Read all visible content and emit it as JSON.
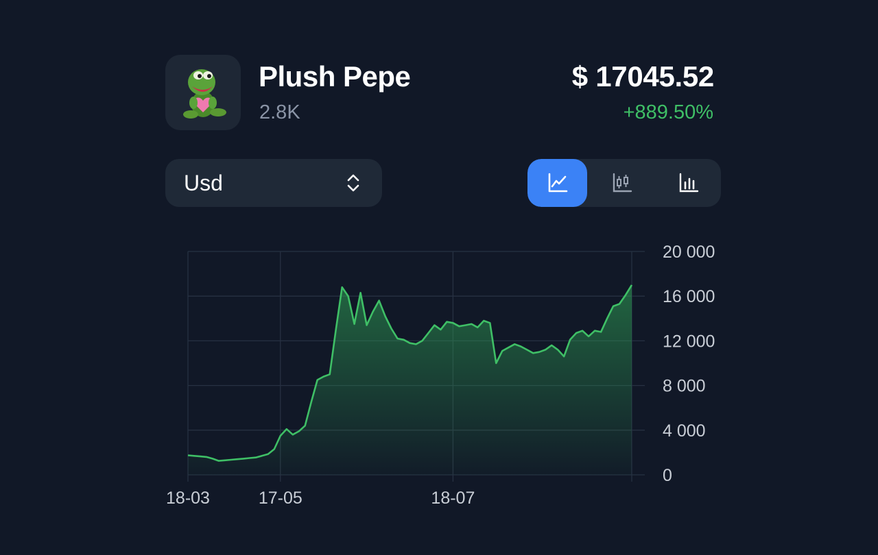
{
  "asset": {
    "name": "Plush Pepe",
    "count": "2.8K",
    "price": "$ 17045.52",
    "change": "+889.50%"
  },
  "currency_select": {
    "value": "Usd"
  },
  "chart_types": [
    {
      "icon": "line-chart-icon",
      "active": true
    },
    {
      "icon": "candlestick-chart-icon",
      "active": false
    },
    {
      "icon": "bar-chart-icon",
      "active": false
    }
  ],
  "colors": {
    "background": "#111827",
    "panel": "#1f2937",
    "accent": "#3b82f6",
    "positive": "#3fbf66"
  },
  "chart_data": {
    "type": "area",
    "title": "",
    "xlabel": "",
    "ylabel": "",
    "x_ticks": [
      "18-03",
      "17-05",
      "18-07"
    ],
    "y_ticks": [
      "20 000",
      "16 000",
      "12 000",
      "8 000",
      "4 000",
      "0"
    ],
    "ylim": [
      0,
      20000
    ],
    "grid": true,
    "y_axis_position": "right",
    "series": [
      {
        "color": "#3fbf66",
        "x": [
          "18-03",
          "22-03",
          "26-03",
          "30-03",
          "03-04",
          "07-04",
          "11-04",
          "15-04",
          "19-04",
          "23-04",
          "27-04",
          "01-05",
          "05-05",
          "09-05",
          "13-05",
          "17-05",
          "21-05",
          "25-05",
          "29-05",
          "31-05",
          "02-06",
          "04-06",
          "06-06",
          "08-06",
          "10-06",
          "12-06",
          "14-06",
          "16-06",
          "18-06",
          "20-06",
          "22-06",
          "24-06",
          "26-06",
          "28-06",
          "30-06",
          "02-07",
          "04-07",
          "06-07",
          "08-07",
          "10-07",
          "12-07",
          "14-07",
          "16-07",
          "18-07",
          "20-07",
          "22-07",
          "24-07",
          "26-07",
          "28-07",
          "30-07",
          "01-08",
          "03-08",
          "05-08",
          "07-08",
          "09-08",
          "11-08",
          "13-08",
          "15-08",
          "17-08",
          "19-08",
          "21-08",
          "23-08",
          "25-08",
          "27-08",
          "29-08",
          "31-08",
          "02-09",
          "04-09",
          "06-09",
          "08-09",
          "10-09",
          "12-09",
          "14-09"
        ],
        "values": [
          1750,
          1700,
          1650,
          1600,
          1450,
          1250,
          1300,
          1350,
          1400,
          1450,
          1500,
          1550,
          1700,
          1850,
          2300,
          3500,
          4100,
          3600,
          3900,
          4400,
          6500,
          8500,
          8800,
          9000,
          13000,
          16800,
          16000,
          13500,
          16300,
          13400,
          14600,
          15600,
          14200,
          13100,
          12200,
          12100,
          11800,
          11700,
          12000,
          12700,
          13400,
          13000,
          13700,
          13600,
          13300,
          13400,
          13500,
          13200,
          13800,
          13600,
          10000,
          11100,
          11400,
          11700,
          11500,
          11200,
          10900,
          11000,
          11200,
          11600,
          11200,
          10600,
          12100,
          12700,
          12900,
          12400,
          12900,
          12800,
          14000,
          15100,
          15300,
          16100,
          17000
        ]
      }
    ]
  }
}
